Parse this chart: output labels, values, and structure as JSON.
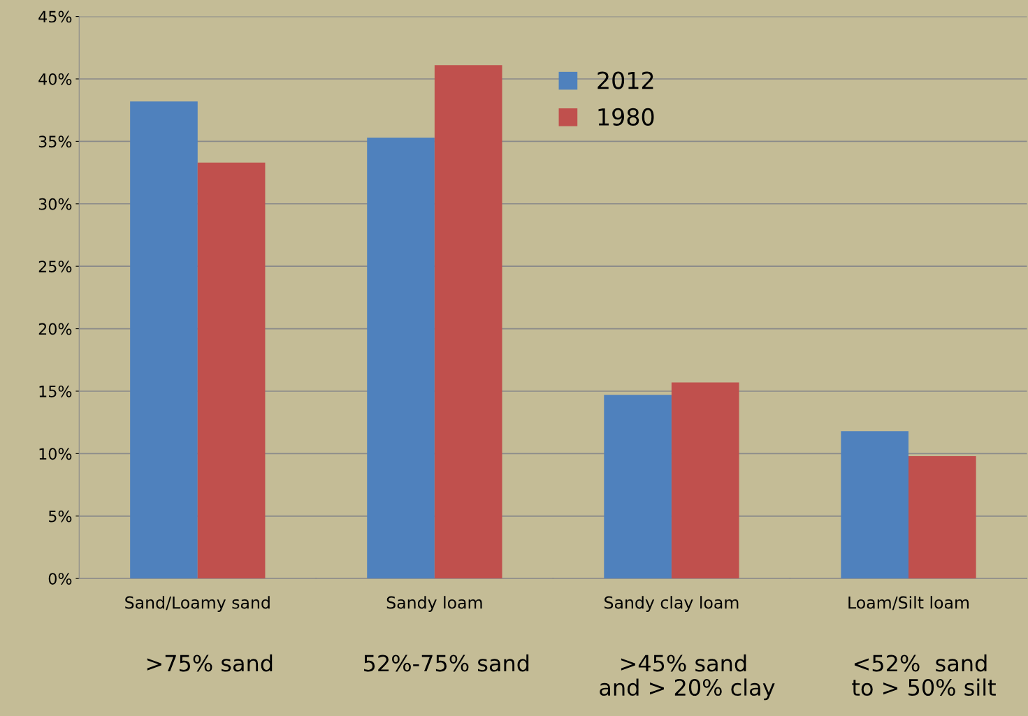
{
  "chart_data": {
    "type": "bar",
    "categories": [
      "Sand/Loamy sand",
      "Sandy loam",
      "Sandy clay loam",
      "Loam/Silt loam"
    ],
    "series": [
      {
        "name": "2012",
        "color": "#4f81bd",
        "values": [
          38.2,
          35.3,
          14.7,
          11.8
        ]
      },
      {
        "name": "1980",
        "color": "#c0504d",
        "values": [
          33.3,
          41.1,
          15.7,
          9.8
        ]
      }
    ],
    "ylim": [
      0,
      45
    ],
    "yticks": [
      {
        "value": 0,
        "label": "0%"
      },
      {
        "value": 5,
        "label": "5%"
      },
      {
        "value": 10,
        "label": "10%"
      },
      {
        "value": 15,
        "label": "15%"
      },
      {
        "value": 20,
        "label": "20%"
      },
      {
        "value": 25,
        "label": "25%"
      },
      {
        "value": 30,
        "label": "30%"
      },
      {
        "value": 35,
        "label": "35%"
      },
      {
        "value": 40,
        "label": "40%"
      },
      {
        "value": 45,
        "label": "45%"
      }
    ],
    "grid": "y",
    "legend": "top right",
    "annotations": [
      ">75% sand",
      "52%-75% sand",
      ">45% sand\n and > 20% clay",
      "<52%  sand\n to > 50% silt"
    ]
  }
}
